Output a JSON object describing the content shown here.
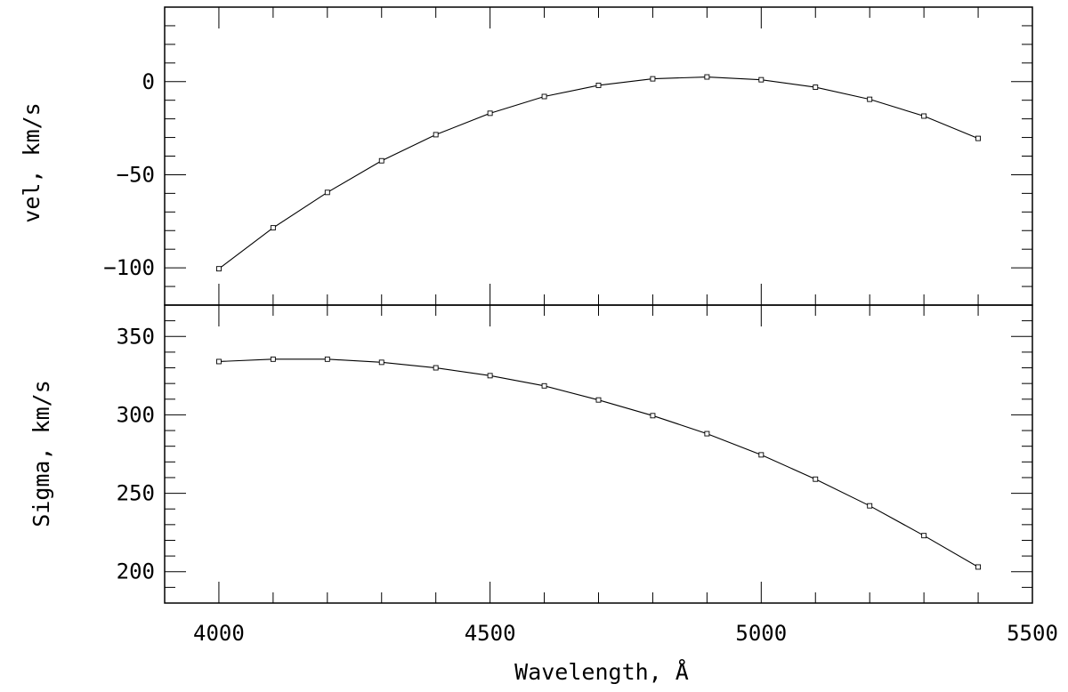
{
  "chart_data": [
    {
      "type": "line",
      "panel": "top",
      "xlabel": "",
      "ylabel": "vel, km/s",
      "xlim": [
        3900,
        5500
      ],
      "ylim": [
        -120,
        40
      ],
      "yticks": [
        -100,
        -50,
        0
      ],
      "yticks_labels": [
        "−100",
        "−50",
        "0"
      ],
      "grid": false,
      "series": [
        {
          "x": [
            4000,
            4100,
            4200,
            4300,
            4400,
            4500,
            4600,
            4700,
            4800,
            4900,
            5000,
            5100,
            5200,
            5300,
            5400
          ],
          "values": [
            -100.5,
            -78.5,
            -59.5,
            -42.5,
            -28.5,
            -17,
            -8,
            -2,
            1.5,
            2.5,
            1,
            -3,
            -9.5,
            -18.5,
            -30.5
          ]
        }
      ]
    },
    {
      "type": "line",
      "panel": "bottom",
      "xlabel": "Wavelength, Å",
      "ylabel": "Sigma, km/s",
      "xlim": [
        3900,
        5500
      ],
      "ylim": [
        180,
        370
      ],
      "yticks": [
        200,
        250,
        300,
        350
      ],
      "xticks": [
        4000,
        4500,
        5000,
        5500
      ],
      "grid": false,
      "series": [
        {
          "x": [
            4000,
            4100,
            4200,
            4300,
            4400,
            4500,
            4600,
            4700,
            4800,
            4900,
            5000,
            5100,
            5200,
            5300,
            5400
          ],
          "values": [
            334,
            335.5,
            335.5,
            333.5,
            330,
            325,
            318.5,
            309.5,
            299.5,
            288,
            274.5,
            259,
            242,
            223,
            203
          ]
        }
      ]
    }
  ]
}
